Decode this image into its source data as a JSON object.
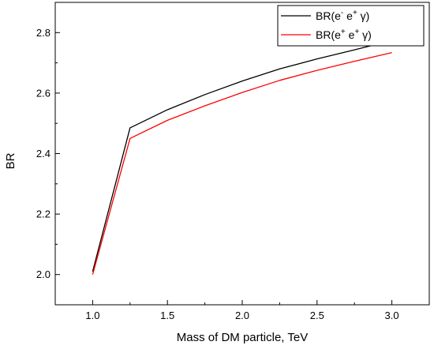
{
  "chart_data": {
    "type": "line",
    "title": "",
    "xlabel": "Mass of DM particle, TeV",
    "ylabel": "BR",
    "xlim": [
      0.75,
      3.25
    ],
    "ylim": [
      1.9,
      2.9
    ],
    "x_ticks": [
      1.0,
      1.5,
      2.0,
      2.5,
      3.0
    ],
    "x_tick_labels": [
      "1.0",
      "1.5",
      "2.0",
      "2.5",
      "3.0"
    ],
    "y_ticks": [
      2.0,
      2.2,
      2.4,
      2.6,
      2.8
    ],
    "y_tick_labels": [
      "2.0",
      "2.2",
      "2.4",
      "2.6",
      "2.8"
    ],
    "grid": false,
    "legend_position": "top-right",
    "x": [
      1.0,
      1.25,
      1.5,
      1.75,
      2.0,
      2.25,
      2.5,
      2.75,
      3.0
    ],
    "series": [
      {
        "name": "BR(e⁻ e⁺ γ)",
        "legend": {
          "base": "BR(e",
          "sup1": "-",
          "mid": " e",
          "sup2": "+",
          "end": " γ)"
        },
        "color": "#000000",
        "values": [
          2.01,
          2.485,
          2.545,
          2.595,
          2.64,
          2.68,
          2.713,
          2.743,
          2.774
        ]
      },
      {
        "name": "BR(e⁺ e⁺ γ)",
        "legend": {
          "base": "BR(e",
          "sup1": "+",
          "mid": " e",
          "sup2": "+",
          "end": " γ)"
        },
        "color": "#ff0000",
        "values": [
          2.0,
          2.45,
          2.51,
          2.558,
          2.602,
          2.642,
          2.675,
          2.705,
          2.734
        ]
      }
    ]
  }
}
